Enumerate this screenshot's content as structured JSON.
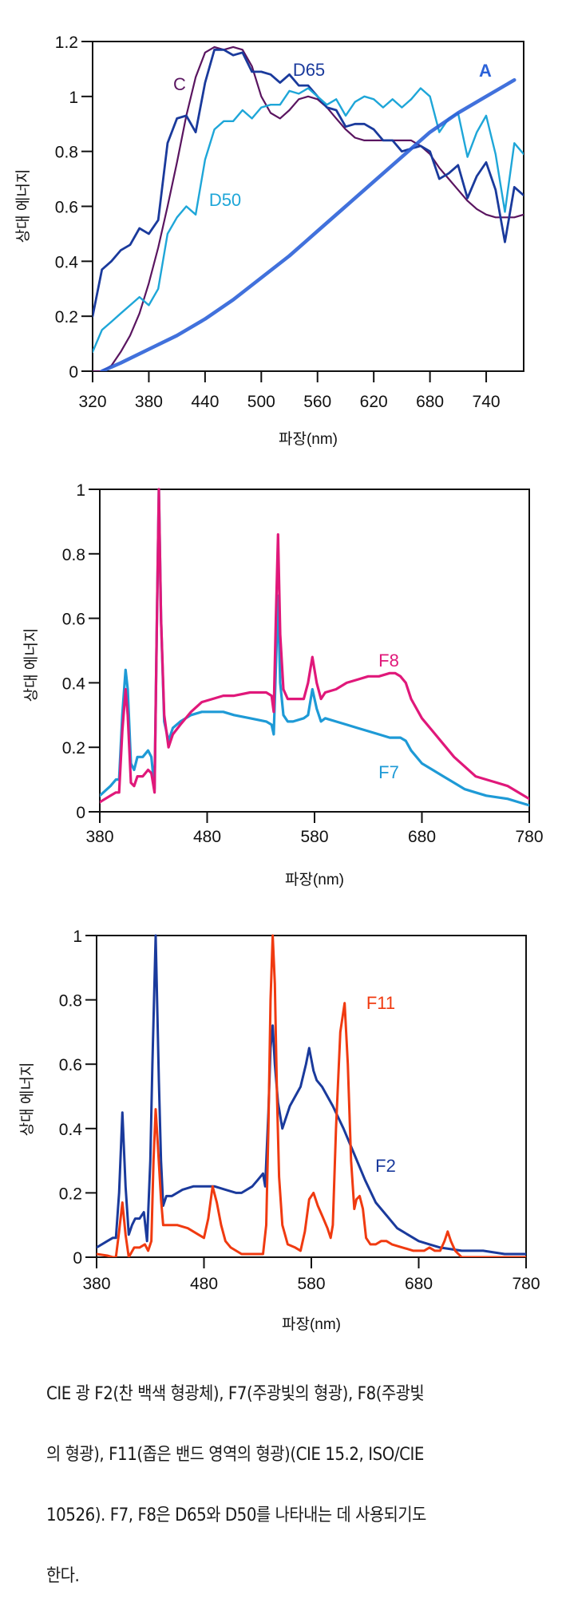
{
  "chart_data": [
    {
      "type": "line",
      "title": "",
      "xlabel": "파장(nm)",
      "ylabel": "상대 에너지",
      "xlim": [
        320,
        780
      ],
      "ylim": [
        0,
        1.2
      ],
      "xticks": [
        320,
        380,
        440,
        500,
        560,
        620,
        680,
        740
      ],
      "xtick_labels": [
        "320",
        "380",
        "440",
        "500",
        "560",
        "620",
        "680",
        "740"
      ],
      "yticks": [
        0,
        0.2,
        0.4,
        0.6,
        0.8,
        1,
        1.2
      ],
      "ytick_labels": [
        "0",
        "0.2",
        "0.4",
        "0.6",
        "0.8",
        "1",
        "1.2"
      ],
      "grid": false,
      "series": [
        {
          "name": "C",
          "color": "#5a1560",
          "x": [
            320,
            330,
            340,
            350,
            360,
            370,
            380,
            390,
            400,
            410,
            420,
            430,
            440,
            450,
            460,
            470,
            480,
            490,
            500,
            510,
            520,
            530,
            540,
            550,
            560,
            570,
            580,
            590,
            600,
            610,
            620,
            630,
            640,
            650,
            660,
            670,
            680,
            690,
            700,
            710,
            720,
            730,
            740,
            750,
            760,
            770,
            780
          ],
          "y": [
            0.0,
            0.0,
            0.02,
            0.07,
            0.13,
            0.21,
            0.32,
            0.45,
            0.6,
            0.76,
            0.93,
            1.07,
            1.16,
            1.18,
            1.17,
            1.18,
            1.17,
            1.11,
            1.0,
            0.94,
            0.92,
            0.95,
            0.99,
            1.0,
            0.99,
            0.96,
            0.92,
            0.88,
            0.85,
            0.84,
            0.84,
            0.84,
            0.84,
            0.84,
            0.84,
            0.82,
            0.79,
            0.74,
            0.7,
            0.66,
            0.62,
            0.59,
            0.57,
            0.56,
            0.56,
            0.56,
            0.57
          ]
        },
        {
          "name": "D65",
          "color": "#1a3a9c",
          "x": [
            320,
            330,
            340,
            350,
            360,
            370,
            380,
            390,
            400,
            410,
            420,
            430,
            440,
            450,
            460,
            470,
            480,
            490,
            500,
            510,
            520,
            530,
            540,
            550,
            560,
            570,
            580,
            590,
            600,
            610,
            620,
            630,
            640,
            650,
            660,
            670,
            680,
            690,
            700,
            710,
            720,
            730,
            740,
            750,
            760,
            770,
            780
          ],
          "y": [
            0.2,
            0.37,
            0.4,
            0.44,
            0.46,
            0.52,
            0.5,
            0.55,
            0.83,
            0.92,
            0.93,
            0.87,
            1.05,
            1.17,
            1.17,
            1.15,
            1.16,
            1.09,
            1.09,
            1.08,
            1.05,
            1.08,
            1.04,
            1.04,
            1.0,
            0.96,
            0.95,
            0.89,
            0.9,
            0.9,
            0.88,
            0.84,
            0.84,
            0.8,
            0.81,
            0.82,
            0.8,
            0.7,
            0.72,
            0.75,
            0.63,
            0.71,
            0.76,
            0.66,
            0.47,
            0.67,
            0.64
          ]
        },
        {
          "name": "D50",
          "color": "#1ea6d8",
          "x": [
            320,
            330,
            340,
            350,
            360,
            370,
            380,
            390,
            400,
            410,
            420,
            430,
            440,
            450,
            460,
            470,
            480,
            490,
            500,
            510,
            520,
            530,
            540,
            550,
            560,
            570,
            580,
            590,
            600,
            610,
            620,
            630,
            640,
            650,
            660,
            670,
            680,
            690,
            700,
            710,
            720,
            730,
            740,
            750,
            760,
            770,
            780
          ],
          "y": [
            0.07,
            0.15,
            0.18,
            0.21,
            0.24,
            0.27,
            0.24,
            0.3,
            0.5,
            0.56,
            0.6,
            0.57,
            0.77,
            0.88,
            0.91,
            0.91,
            0.95,
            0.92,
            0.96,
            0.97,
            0.97,
            1.02,
            1.01,
            1.03,
            1.0,
            0.97,
            0.99,
            0.93,
            0.98,
            1.0,
            0.99,
            0.96,
            0.99,
            0.96,
            0.99,
            1.03,
            1.0,
            0.87,
            0.92,
            0.94,
            0.78,
            0.87,
            0.93,
            0.79,
            0.58,
            0.83,
            0.79
          ]
        },
        {
          "name": "A",
          "color": "#2c62d8",
          "x": [
            330,
            350,
            380,
            410,
            440,
            470,
            500,
            530,
            560,
            590,
            620,
            650,
            680,
            710,
            740,
            770
          ],
          "y": [
            0.0,
            0.03,
            0.08,
            0.13,
            0.19,
            0.26,
            0.34,
            0.42,
            0.51,
            0.6,
            0.69,
            0.78,
            0.87,
            0.94,
            1.0,
            1.06
          ]
        }
      ]
    },
    {
      "type": "line",
      "title": "",
      "xlabel": "파장(nm)",
      "ylabel": "상대 에너지",
      "xlim": [
        380,
        780
      ],
      "ylim": [
        0,
        1
      ],
      "xticks": [
        380,
        480,
        580,
        680,
        780
      ],
      "xtick_labels": [
        "380",
        "480",
        "580",
        "680",
        "780"
      ],
      "yticks": [
        0,
        0.2,
        0.4,
        0.6,
        0.8,
        1
      ],
      "ytick_labels": [
        "0",
        "0.2",
        "0.4",
        "0.6",
        "0.8",
        "1"
      ],
      "grid": false,
      "series": [
        {
          "name": "F7",
          "color": "#1e9ad6",
          "x": [
            380,
            390,
            395,
            398,
            401,
            404,
            406,
            409,
            412,
            415,
            420,
            425,
            428,
            431,
            433,
            435,
            437,
            440,
            444,
            448,
            455,
            465,
            475,
            485,
            495,
            505,
            520,
            535,
            540,
            542,
            544,
            546,
            548,
            551,
            555,
            560,
            570,
            574,
            578,
            582,
            586,
            590,
            600,
            610,
            620,
            630,
            640,
            650,
            660,
            665,
            670,
            680,
            690,
            700,
            710,
            720,
            730,
            740,
            750,
            760,
            770,
            780
          ],
          "y": [
            0.05,
            0.08,
            0.1,
            0.1,
            0.3,
            0.44,
            0.38,
            0.15,
            0.13,
            0.17,
            0.17,
            0.19,
            0.17,
            0.07,
            0.55,
            1.0,
            0.6,
            0.28,
            0.22,
            0.26,
            0.28,
            0.3,
            0.31,
            0.31,
            0.31,
            0.3,
            0.29,
            0.28,
            0.27,
            0.24,
            0.45,
            0.67,
            0.4,
            0.3,
            0.28,
            0.28,
            0.29,
            0.3,
            0.38,
            0.32,
            0.28,
            0.29,
            0.28,
            0.27,
            0.26,
            0.25,
            0.24,
            0.23,
            0.23,
            0.22,
            0.19,
            0.15,
            0.13,
            0.11,
            0.09,
            0.07,
            0.06,
            0.05,
            0.045,
            0.04,
            0.03,
            0.02
          ]
        },
        {
          "name": "F8",
          "color": "#e0187a",
          "x": [
            380,
            390,
            395,
            398,
            401,
            404,
            406,
            409,
            412,
            415,
            420,
            425,
            428,
            431,
            433,
            435,
            437,
            440,
            444,
            448,
            455,
            465,
            475,
            485,
            495,
            505,
            520,
            535,
            540,
            542,
            544,
            546,
            548,
            551,
            555,
            560,
            570,
            574,
            578,
            582,
            586,
            590,
            600,
            610,
            620,
            630,
            640,
            650,
            655,
            660,
            665,
            670,
            680,
            690,
            700,
            710,
            720,
            730,
            740,
            750,
            760,
            770,
            780
          ],
          "y": [
            0.03,
            0.05,
            0.06,
            0.06,
            0.25,
            0.38,
            0.3,
            0.09,
            0.08,
            0.11,
            0.11,
            0.13,
            0.12,
            0.06,
            0.55,
            1.0,
            0.6,
            0.3,
            0.2,
            0.24,
            0.27,
            0.31,
            0.34,
            0.35,
            0.36,
            0.36,
            0.37,
            0.37,
            0.36,
            0.31,
            0.6,
            0.86,
            0.55,
            0.38,
            0.35,
            0.35,
            0.35,
            0.4,
            0.48,
            0.4,
            0.35,
            0.37,
            0.38,
            0.4,
            0.41,
            0.42,
            0.42,
            0.43,
            0.43,
            0.42,
            0.4,
            0.35,
            0.29,
            0.25,
            0.21,
            0.17,
            0.14,
            0.11,
            0.1,
            0.09,
            0.08,
            0.06,
            0.04
          ]
        }
      ]
    },
    {
      "type": "line",
      "title": "",
      "xlabel": "파장(nm)",
      "ylabel": "상대 에너지",
      "xlim": [
        380,
        780
      ],
      "ylim": [
        0,
        1
      ],
      "xticks": [
        380,
        480,
        580,
        680,
        780
      ],
      "xtick_labels": [
        "380",
        "480",
        "580",
        "680",
        "780"
      ],
      "yticks": [
        0,
        0.2,
        0.4,
        0.6,
        0.8,
        1
      ],
      "ytick_labels": [
        "0",
        "0.2",
        "0.4",
        "0.6",
        "0.8",
        "1"
      ],
      "grid": false,
      "series": [
        {
          "name": "F2",
          "color": "#1a3a9c",
          "x": [
            380,
            390,
            395,
            398,
            401,
            404,
            407,
            410,
            413,
            416,
            420,
            424,
            427,
            430,
            432,
            435,
            438,
            440,
            442,
            445,
            450,
            460,
            470,
            480,
            490,
            500,
            510,
            515,
            525,
            530,
            535,
            537,
            540,
            542,
            544,
            546,
            549,
            553,
            560,
            565,
            570,
            575,
            578,
            582,
            585,
            590,
            600,
            610,
            620,
            630,
            640,
            650,
            660,
            670,
            680,
            690,
            700,
            720,
            740,
            760,
            780
          ],
          "y": [
            0.03,
            0.05,
            0.06,
            0.06,
            0.2,
            0.45,
            0.22,
            0.07,
            0.1,
            0.12,
            0.12,
            0.14,
            0.05,
            0.3,
            0.6,
            1.0,
            0.55,
            0.3,
            0.16,
            0.19,
            0.19,
            0.21,
            0.22,
            0.22,
            0.22,
            0.21,
            0.2,
            0.2,
            0.22,
            0.24,
            0.26,
            0.22,
            0.45,
            0.65,
            0.72,
            0.6,
            0.48,
            0.4,
            0.47,
            0.5,
            0.53,
            0.6,
            0.65,
            0.58,
            0.55,
            0.53,
            0.47,
            0.4,
            0.32,
            0.24,
            0.17,
            0.13,
            0.09,
            0.07,
            0.05,
            0.04,
            0.03,
            0.02,
            0.02,
            0.01,
            0.01
          ]
        },
        {
          "name": "F11",
          "color": "#f03a10",
          "x": [
            380,
            390,
            395,
            398,
            401,
            404,
            407,
            410,
            415,
            420,
            425,
            428,
            431,
            433,
            435,
            437,
            440,
            442,
            446,
            455,
            465,
            475,
            480,
            484,
            488,
            492,
            496,
            500,
            505,
            515,
            525,
            535,
            538,
            540,
            542,
            544,
            546,
            548,
            550,
            553,
            558,
            565,
            570,
            574,
            578,
            582,
            586,
            590,
            595,
            598,
            600,
            603,
            607,
            611,
            614,
            617,
            620,
            622,
            625,
            628,
            631,
            635,
            640,
            645,
            650,
            655,
            665,
            675,
            685,
            690,
            695,
            700,
            704,
            707,
            710,
            714,
            720,
            740,
            760,
            780
          ],
          "y": [
            0.01,
            0.005,
            0.0,
            0.0,
            0.08,
            0.17,
            0.07,
            0.0,
            0.03,
            0.03,
            0.04,
            0.02,
            0.05,
            0.3,
            0.46,
            0.35,
            0.18,
            0.1,
            0.1,
            0.1,
            0.09,
            0.07,
            0.06,
            0.12,
            0.22,
            0.17,
            0.1,
            0.05,
            0.03,
            0.01,
            0.01,
            0.01,
            0.1,
            0.4,
            0.8,
            1.0,
            0.85,
            0.5,
            0.25,
            0.1,
            0.04,
            0.03,
            0.02,
            0.08,
            0.18,
            0.2,
            0.16,
            0.13,
            0.09,
            0.06,
            0.1,
            0.4,
            0.7,
            0.79,
            0.6,
            0.3,
            0.15,
            0.18,
            0.19,
            0.15,
            0.06,
            0.04,
            0.04,
            0.05,
            0.05,
            0.04,
            0.03,
            0.02,
            0.02,
            0.03,
            0.02,
            0.02,
            0.05,
            0.08,
            0.05,
            0.02,
            0.0,
            0.0,
            0.0,
            0.0
          ]
        }
      ]
    }
  ],
  "caption": {
    "lines": [
      "CIE 광 F2(찬 백색 형광체), F7(주광빛의 형광), F8(주광빛",
      "의 형광), F11(좁은 밴드 영역의 형광)(CIE 15.2, ISO/CIE",
      "10526). F7, F8은 D65와 D50를 나타내는 데 사용되기도",
      "한다."
    ]
  }
}
